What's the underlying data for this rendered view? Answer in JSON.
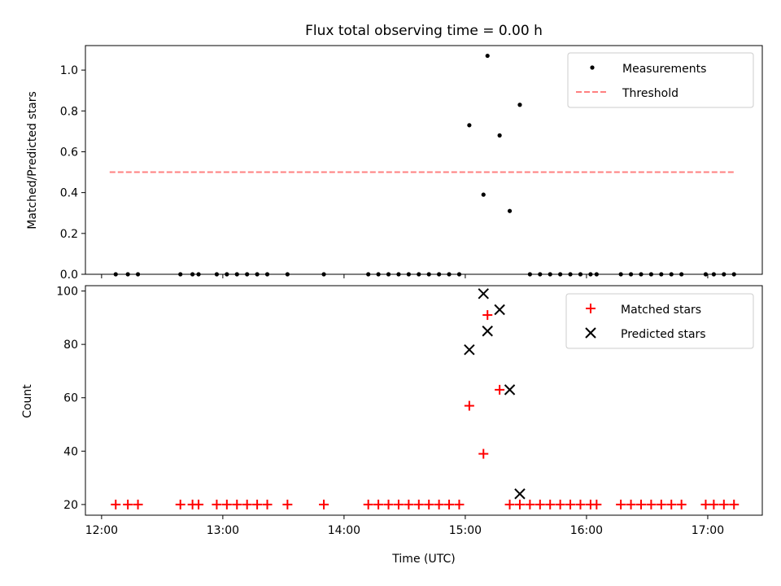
{
  "chart_data": [
    {
      "type": "scatter",
      "title": "Flux total observing time = 0.00 h",
      "ylabel": "Matched/Predicted stars",
      "xlabel": "",
      "x_ticks": [
        "12:00",
        "13:00",
        "14:00",
        "15:00",
        "16:00",
        "17:00"
      ],
      "y_ticks": [
        "0.0",
        "0.2",
        "0.4",
        "0.6",
        "0.8",
        "1.0"
      ],
      "xlim": [
        "11:52",
        "17:27"
      ],
      "ylim": [
        0,
        1.12
      ],
      "legend_position": "top-right",
      "grid": false,
      "series": [
        {
          "name": "Measurements",
          "marker": "dot",
          "color": "#000000",
          "points": [
            [
              "15:02",
              0.73
            ],
            [
              "15:09",
              0.39
            ],
            [
              "15:11",
              1.07
            ],
            [
              "15:17",
              0.68
            ],
            [
              "15:22",
              0.31
            ],
            [
              "15:27",
              0.83
            ],
            [
              "12:07",
              0
            ],
            [
              "12:13",
              0
            ],
            [
              "12:18",
              0
            ],
            [
              "12:39",
              0
            ],
            [
              "12:45",
              0
            ],
            [
              "12:48",
              0
            ],
            [
              "12:57",
              0
            ],
            [
              "13:02",
              0
            ],
            [
              "13:07",
              0
            ],
            [
              "13:12",
              0
            ],
            [
              "13:17",
              0
            ],
            [
              "13:22",
              0
            ],
            [
              "13:32",
              0
            ],
            [
              "13:50",
              0
            ],
            [
              "14:12",
              0
            ],
            [
              "14:17",
              0
            ],
            [
              "14:22",
              0
            ],
            [
              "14:27",
              0
            ],
            [
              "14:32",
              0
            ],
            [
              "14:37",
              0
            ],
            [
              "14:42",
              0
            ],
            [
              "14:47",
              0
            ],
            [
              "14:52",
              0
            ],
            [
              "14:57",
              0
            ],
            [
              "15:32",
              0
            ],
            [
              "15:37",
              0
            ],
            [
              "15:42",
              0
            ],
            [
              "15:47",
              0
            ],
            [
              "15:52",
              0
            ],
            [
              "15:57",
              0
            ],
            [
              "16:02",
              0
            ],
            [
              "16:05",
              0
            ],
            [
              "16:17",
              0
            ],
            [
              "16:22",
              0
            ],
            [
              "16:27",
              0
            ],
            [
              "16:32",
              0
            ],
            [
              "16:37",
              0
            ],
            [
              "16:42",
              0
            ],
            [
              "16:47",
              0
            ],
            [
              "16:59",
              0
            ],
            [
              "17:03",
              0
            ],
            [
              "17:08",
              0
            ],
            [
              "17:13",
              0
            ]
          ]
        },
        {
          "name": "Threshold",
          "marker": "dashed-line",
          "color": "#ff8080",
          "points": [
            [
              "12:04",
              0.5
            ],
            [
              "17:13",
              0.5
            ]
          ]
        }
      ]
    },
    {
      "type": "scatter",
      "title": "",
      "ylabel": "Count",
      "xlabel": "Time (UTC)",
      "x_ticks": [
        "12:00",
        "13:00",
        "14:00",
        "15:00",
        "16:00",
        "17:00"
      ],
      "y_ticks": [
        "20",
        "40",
        "60",
        "80",
        "100"
      ],
      "xlim": [
        "11:52",
        "17:27"
      ],
      "ylim": [
        16,
        102
      ],
      "legend_position": "top-right",
      "grid": false,
      "series": [
        {
          "name": "Matched stars",
          "marker": "plus",
          "color": "#ff0000",
          "points": [
            [
              "15:02",
              57
            ],
            [
              "15:09",
              39
            ],
            [
              "15:11",
              91
            ],
            [
              "15:17",
              63
            ],
            [
              "15:27",
              20
            ],
            [
              "12:07",
              20
            ],
            [
              "12:13",
              20
            ],
            [
              "12:18",
              20
            ],
            [
              "12:39",
              20
            ],
            [
              "12:45",
              20
            ],
            [
              "12:48",
              20
            ],
            [
              "12:57",
              20
            ],
            [
              "13:02",
              20
            ],
            [
              "13:07",
              20
            ],
            [
              "13:12",
              20
            ],
            [
              "13:17",
              20
            ],
            [
              "13:22",
              20
            ],
            [
              "13:32",
              20
            ],
            [
              "13:50",
              20
            ],
            [
              "14:12",
              20
            ],
            [
              "14:17",
              20
            ],
            [
              "14:22",
              20
            ],
            [
              "14:27",
              20
            ],
            [
              "14:32",
              20
            ],
            [
              "14:37",
              20
            ],
            [
              "14:42",
              20
            ],
            [
              "14:47",
              20
            ],
            [
              "14:52",
              20
            ],
            [
              "14:57",
              20
            ],
            [
              "15:22",
              20
            ],
            [
              "15:32",
              20
            ],
            [
              "15:37",
              20
            ],
            [
              "15:42",
              20
            ],
            [
              "15:47",
              20
            ],
            [
              "15:52",
              20
            ],
            [
              "15:57",
              20
            ],
            [
              "16:02",
              20
            ],
            [
              "16:05",
              20
            ],
            [
              "16:17",
              20
            ],
            [
              "16:22",
              20
            ],
            [
              "16:27",
              20
            ],
            [
              "16:32",
              20
            ],
            [
              "16:37",
              20
            ],
            [
              "16:42",
              20
            ],
            [
              "16:47",
              20
            ],
            [
              "16:59",
              20
            ],
            [
              "17:03",
              20
            ],
            [
              "17:08",
              20
            ],
            [
              "17:13",
              20
            ]
          ]
        },
        {
          "name": "Predicted stars",
          "marker": "x",
          "color": "#000000",
          "points": [
            [
              "15:02",
              78
            ],
            [
              "15:09",
              99
            ],
            [
              "15:11",
              85
            ],
            [
              "15:17",
              93
            ],
            [
              "15:22",
              63
            ],
            [
              "15:27",
              24
            ]
          ]
        }
      ]
    }
  ]
}
